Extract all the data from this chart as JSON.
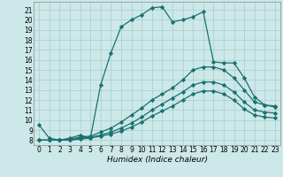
{
  "xlabel": "Humidex (Indice chaleur)",
  "bg_color": "#cce8e8",
  "grid_color": "#aacccc",
  "line_color": "#1a7070",
  "xlim": [
    -0.5,
    23.5
  ],
  "ylim": [
    7.5,
    21.8
  ],
  "yticks": [
    8,
    9,
    10,
    11,
    12,
    13,
    14,
    15,
    16,
    17,
    18,
    19,
    20,
    21
  ],
  "xticks": [
    0,
    1,
    2,
    3,
    4,
    5,
    6,
    7,
    8,
    9,
    10,
    11,
    12,
    13,
    14,
    15,
    16,
    17,
    18,
    19,
    20,
    21,
    22,
    23
  ],
  "lines": [
    {
      "x": [
        0,
        1,
        2,
        3,
        4,
        5,
        6,
        7,
        8,
        9,
        10,
        11,
        12,
        13,
        14,
        15,
        16,
        17,
        18,
        19,
        20,
        21,
        22,
        23
      ],
      "y": [
        9.5,
        8.2,
        8.0,
        8.2,
        8.5,
        8.2,
        13.5,
        16.7,
        19.3,
        20.0,
        20.5,
        21.2,
        21.3,
        19.8,
        20.0,
        20.3,
        20.8,
        15.8,
        15.7,
        15.7,
        14.2,
        12.3,
        11.5,
        11.4
      ]
    },
    {
      "x": [
        0,
        1,
        2,
        3,
        4,
        5,
        6,
        7,
        8,
        9,
        10,
        11,
        12,
        13,
        14,
        15,
        16,
        17,
        18,
        19,
        20,
        21,
        22,
        23
      ],
      "y": [
        8.0,
        8.0,
        8.0,
        8.1,
        8.3,
        8.4,
        8.8,
        9.2,
        9.8,
        10.5,
        11.2,
        12.0,
        12.6,
        13.2,
        14.0,
        15.0,
        15.3,
        15.3,
        15.0,
        14.2,
        13.0,
        11.8,
        11.5,
        11.3
      ]
    },
    {
      "x": [
        0,
        1,
        2,
        3,
        4,
        5,
        6,
        7,
        8,
        9,
        10,
        11,
        12,
        13,
        14,
        15,
        16,
        17,
        18,
        19,
        20,
        21,
        22,
        23
      ],
      "y": [
        8.0,
        8.0,
        8.0,
        8.0,
        8.2,
        8.3,
        8.5,
        8.8,
        9.2,
        9.7,
        10.3,
        11.0,
        11.6,
        12.2,
        12.8,
        13.5,
        13.8,
        13.8,
        13.5,
        12.8,
        11.8,
        11.0,
        10.8,
        10.7
      ]
    },
    {
      "x": [
        0,
        1,
        2,
        3,
        4,
        5,
        6,
        7,
        8,
        9,
        10,
        11,
        12,
        13,
        14,
        15,
        16,
        17,
        18,
        19,
        20,
        21,
        22,
        23
      ],
      "y": [
        8.0,
        8.0,
        8.0,
        8.0,
        8.1,
        8.2,
        8.4,
        8.6,
        8.9,
        9.3,
        9.8,
        10.4,
        10.9,
        11.4,
        12.0,
        12.6,
        12.9,
        12.9,
        12.6,
        12.0,
        11.1,
        10.5,
        10.3,
        10.2
      ]
    }
  ],
  "marker": "D",
  "markersize": 2.2,
  "linewidth": 0.9,
  "tick_fontsize": 5.5,
  "xlabel_fontsize": 6.5
}
